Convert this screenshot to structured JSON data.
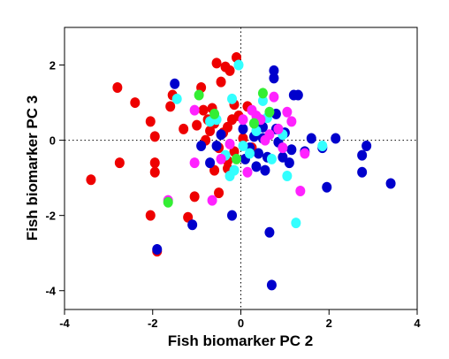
{
  "chart_data": {
    "type": "scatter",
    "title": "",
    "xlabel": "Fish biomarker PC 2",
    "ylabel": "Fish biomarker PC 3",
    "xlim": [
      -4,
      4
    ],
    "ylim": [
      -4.5,
      3
    ],
    "xticks": [
      -4,
      -2,
      0,
      2,
      4
    ],
    "yticks": [
      -4,
      -2,
      0,
      2
    ],
    "xtick_labels": [
      "-4",
      "-2",
      "0",
      "2",
      "4"
    ],
    "ytick_labels": [
      "-4",
      "-2",
      "0",
      "2"
    ],
    "zero_lines": "dotted",
    "grid": false,
    "legend": "none",
    "colors": {
      "red": "#ee0000",
      "blue": "#0000cc",
      "cyan": "#33ffff",
      "magenta": "#ff22ff",
      "green": "#33ee33"
    },
    "series": [
      {
        "color": "red",
        "points": [
          [
            -3.4,
            -1.05
          ],
          [
            -2.8,
            1.4
          ],
          [
            -2.75,
            -0.6
          ],
          [
            -2.4,
            1.0
          ],
          [
            -2.05,
            0.5
          ],
          [
            -1.95,
            0.1
          ],
          [
            -1.95,
            -0.6
          ],
          [
            -1.95,
            -0.85
          ],
          [
            -2.05,
            -2.0
          ],
          [
            -1.9,
            -2.95
          ],
          [
            -1.6,
            0.9
          ],
          [
            -1.55,
            1.2
          ],
          [
            -1.3,
            0.3
          ],
          [
            -1.2,
            -2.05
          ],
          [
            -1.05,
            -1.5
          ],
          [
            -1.0,
            0.4
          ],
          [
            -0.9,
            1.4
          ],
          [
            -0.85,
            0.8
          ],
          [
            -0.75,
            0.55
          ],
          [
            -0.7,
            0.25
          ],
          [
            -0.6,
            0.45
          ],
          [
            -0.55,
            2.05
          ],
          [
            -0.5,
            -0.2
          ],
          [
            -0.45,
            1.55
          ],
          [
            -0.35,
            1.95
          ],
          [
            -0.3,
            0.35
          ],
          [
            -0.25,
            1.85
          ],
          [
            -0.15,
            0.95
          ],
          [
            -0.1,
            2.2
          ],
          [
            -0.05,
            0.65
          ],
          [
            0.05,
            0.05
          ],
          [
            -0.2,
            0.55
          ],
          [
            -0.6,
            -0.8
          ],
          [
            -0.5,
            -1.4
          ],
          [
            -0.8,
            0.0
          ],
          [
            -0.3,
            -0.75
          ],
          [
            -0.65,
            0.85
          ],
          [
            -0.3,
            -0.55
          ],
          [
            -0.15,
            -0.3
          ],
          [
            0.25,
            -0.2
          ],
          [
            0.15,
            0.9
          ],
          [
            -0.4,
            0.2
          ]
        ]
      },
      {
        "color": "blue",
        "points": [
          [
            -1.5,
            1.5
          ],
          [
            -1.1,
            -2.25
          ],
          [
            -1.9,
            -2.9
          ],
          [
            -0.9,
            -0.15
          ],
          [
            -0.7,
            -0.6
          ],
          [
            -0.55,
            -0.15
          ],
          [
            -0.45,
            0.15
          ],
          [
            -0.2,
            -2.0
          ],
          [
            0.1,
            -0.5
          ],
          [
            0.2,
            -0.2
          ],
          [
            0.3,
            0.1
          ],
          [
            0.4,
            -0.35
          ],
          [
            0.5,
            0.05
          ],
          [
            0.55,
            -0.8
          ],
          [
            0.65,
            -2.45
          ],
          [
            0.7,
            -3.85
          ],
          [
            0.75,
            1.85
          ],
          [
            0.75,
            1.65
          ],
          [
            0.8,
            0.7
          ],
          [
            0.8,
            0.3
          ],
          [
            0.85,
            -0.05
          ],
          [
            0.95,
            -0.45
          ],
          [
            1.0,
            0.2
          ],
          [
            1.15,
            -0.25
          ],
          [
            1.2,
            1.2
          ],
          [
            1.3,
            1.2
          ],
          [
            1.45,
            -0.3
          ],
          [
            1.6,
            0.05
          ],
          [
            1.85,
            -0.2
          ],
          [
            1.95,
            -1.25
          ],
          [
            2.15,
            0.05
          ],
          [
            2.75,
            -0.4
          ],
          [
            2.75,
            -0.85
          ],
          [
            2.85,
            -0.15
          ],
          [
            3.4,
            -1.15
          ],
          [
            0.35,
            -0.7
          ],
          [
            0.6,
            -0.45
          ],
          [
            0.05,
            0.3
          ],
          [
            0.5,
            0.35
          ],
          [
            1.1,
            -0.6
          ]
        ]
      },
      {
        "color": "cyan",
        "points": [
          [
            -1.45,
            1.1
          ],
          [
            -0.7,
            0.5
          ],
          [
            -0.55,
            0.55
          ],
          [
            -0.35,
            -0.4
          ],
          [
            -0.2,
            1.1
          ],
          [
            -0.05,
            2.0
          ],
          [
            -0.15,
            -0.8
          ],
          [
            0.05,
            -0.15
          ],
          [
            0.2,
            -0.35
          ],
          [
            0.35,
            0.25
          ],
          [
            0.5,
            1.05
          ],
          [
            0.6,
            0.6
          ],
          [
            0.95,
            0.15
          ],
          [
            1.05,
            -0.95
          ],
          [
            1.25,
            -2.2
          ],
          [
            1.85,
            -0.15
          ],
          [
            -0.25,
            -0.95
          ],
          [
            0.7,
            -0.5
          ]
        ]
      },
      {
        "color": "magenta",
        "points": [
          [
            -1.65,
            -1.6
          ],
          [
            -1.05,
            0.8
          ],
          [
            -1.05,
            -0.6
          ],
          [
            -0.65,
            -1.6
          ],
          [
            -0.45,
            -0.5
          ],
          [
            -0.25,
            -0.1
          ],
          [
            0.05,
            0.55
          ],
          [
            0.15,
            -0.85
          ],
          [
            0.25,
            0.8
          ],
          [
            0.35,
            0.65
          ],
          [
            0.45,
            0.55
          ],
          [
            0.55,
            0.0
          ],
          [
            0.75,
            1.15
          ],
          [
            0.85,
            0.3
          ],
          [
            1.05,
            0.75
          ],
          [
            1.15,
            0.5
          ],
          [
            1.35,
            -1.35
          ],
          [
            1.45,
            -0.35
          ],
          [
            0.65,
            0.15
          ],
          [
            0.95,
            -0.2
          ]
        ]
      },
      {
        "color": "green",
        "points": [
          [
            -1.65,
            -1.65
          ],
          [
            -0.95,
            1.2
          ],
          [
            -0.6,
            0.7
          ],
          [
            0.5,
            1.25
          ],
          [
            0.65,
            0.75
          ],
          [
            -0.1,
            -0.5
          ],
          [
            0.3,
            0.45
          ]
        ]
      }
    ]
  }
}
